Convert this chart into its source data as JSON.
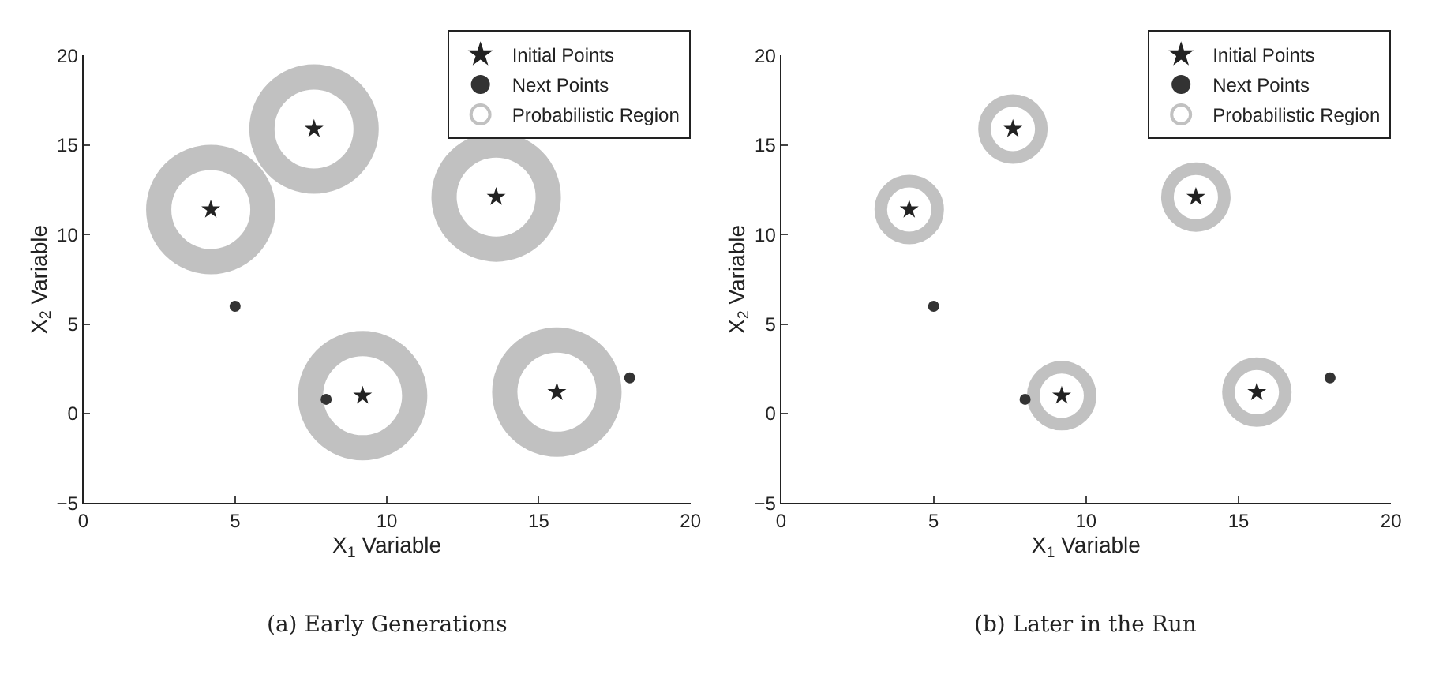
{
  "chart_data": [
    {
      "type": "scatter",
      "title": "(a) Early Generations",
      "xlabel": "X$_{1}$ Variable",
      "ylabel": "X$_{2}$ Variable",
      "xlim": [
        0,
        20
      ],
      "ylim": [
        -5,
        20
      ],
      "xticks": [
        0,
        5,
        10,
        15,
        20
      ],
      "yticks": [
        -5,
        0,
        5,
        10,
        15,
        20
      ],
      "legend": "top right",
      "series": [
        {
          "name": "Probabilistic Region",
          "type": "bubble",
          "color": "#a8a8a8",
          "x": [
            4.2,
            7.6,
            13.6,
            9.2,
            15.6
          ],
          "values": [
            11.4,
            15.9,
            12.1,
            1.0,
            1.2
          ],
          "sizes": [
            1,
            1,
            1,
            1,
            1
          ]
        },
        {
          "name": "Initial Points",
          "type": "scatter",
          "marker": "star",
          "color": "#222222",
          "x": [
            4.2,
            7.6,
            13.6,
            9.2,
            15.6
          ],
          "values": [
            11.4,
            15.9,
            12.1,
            1.0,
            1.2
          ]
        },
        {
          "name": "Next Points",
          "type": "scatter",
          "marker": "circle",
          "color": "#333333",
          "x": [
            5,
            8,
            18
          ],
          "values": [
            6,
            0.8,
            2
          ]
        }
      ]
    },
    {
      "type": "scatter",
      "title": "(b) Later in the Run",
      "xlabel": "X$_{1}$ Variable",
      "ylabel": "X$_{2}$ Variable",
      "xlim": [
        0,
        20
      ],
      "ylim": [
        -5,
        20
      ],
      "xticks": [
        0,
        5,
        10,
        15,
        20
      ],
      "yticks": [
        -5,
        0,
        5,
        10,
        15,
        20
      ],
      "legend": "top right",
      "series": [
        {
          "name": "Probabilistic Region",
          "type": "bubble",
          "color": "#a8a8a8",
          "x": [
            4.2,
            7.6,
            13.6,
            9.2,
            15.6
          ],
          "values": [
            11.4,
            15.9,
            12.1,
            1.0,
            1.2
          ],
          "sizes": [
            1,
            1,
            1,
            1,
            1
          ]
        },
        {
          "name": "Initial Points",
          "type": "scatter",
          "marker": "star",
          "color": "#222222",
          "x": [
            4.2,
            7.6,
            13.6,
            9.2,
            15.6
          ],
          "values": [
            11.4,
            15.9,
            12.1,
            1.0,
            1.2
          ]
        },
        {
          "name": "Next Points",
          "type": "scatter",
          "marker": "circle",
          "color": "#333333",
          "x": [
            5,
            8,
            18
          ],
          "values": [
            6,
            0.8,
            2
          ]
        }
      ]
    }
  ]
}
